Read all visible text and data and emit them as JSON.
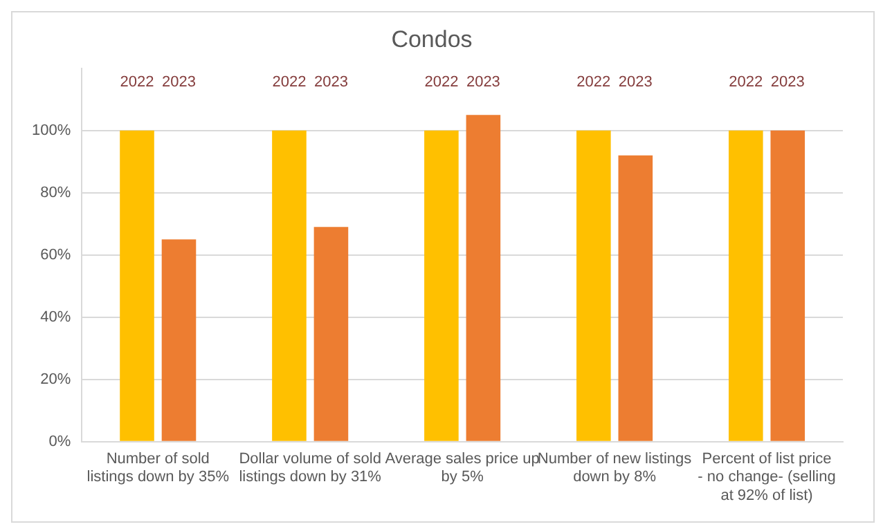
{
  "chart_data": {
    "type": "bar",
    "title": "Condos",
    "categories": [
      "Number of sold listings down by 35%",
      "Dollar volume of sold listings down by 31%",
      "Average sales price up by 5%",
      "Number of new listings down by 8%",
      "Percent of list price - no change- (selling at 92% of list)"
    ],
    "series": [
      {
        "name": "2022",
        "color": "#ffc000",
        "values": [
          100,
          100,
          100,
          100,
          100
        ]
      },
      {
        "name": "2023",
        "color": "#ed7d31",
        "values": [
          65,
          69,
          105,
          92,
          100
        ]
      }
    ],
    "ylim": [
      0,
      120
    ],
    "yticks": [
      {
        "value": 0,
        "label": "0%"
      },
      {
        "value": 20,
        "label": "20%"
      },
      {
        "value": 40,
        "label": "40%"
      },
      {
        "value": 60,
        "label": "60%"
      },
      {
        "value": 80,
        "label": "80%"
      },
      {
        "value": 100,
        "label": "100%"
      }
    ],
    "grid": "y",
    "legend": false
  }
}
